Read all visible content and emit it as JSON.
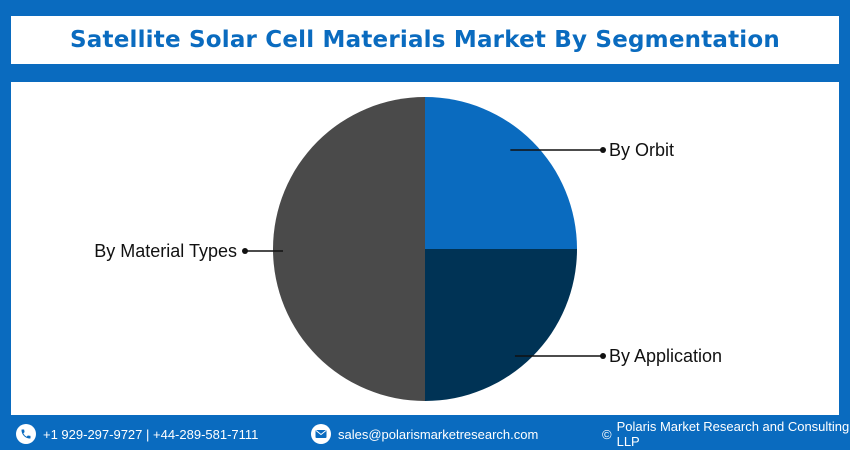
{
  "title": "Satellite Solar Cell Materials Market By Segmentation",
  "colors": {
    "brand": "#0a6bbf",
    "by_orbit": "#0a6bbf",
    "by_application": "#003355",
    "by_material_types": "#4a4a4a"
  },
  "chart_data": {
    "type": "pie",
    "title": "Satellite Solar Cell Materials Market By Segmentation",
    "slices": [
      {
        "label": "By Orbit",
        "value": 25,
        "color": "#0a6bbf"
      },
      {
        "label": "By Application",
        "value": 25,
        "color": "#003355"
      },
      {
        "label": "By Material Types",
        "value": 50,
        "color": "#4a4a4a"
      }
    ]
  },
  "footer": {
    "phone": "+1 929-297-9727 | +44-289-581-7111",
    "email": "sales@polarismarketresearch.com",
    "copyright_symbol": "©",
    "copyright": "Polaris Market Research and Consulting LLP",
    "phone_icon": "phone-icon",
    "email_icon": "email-icon"
  }
}
